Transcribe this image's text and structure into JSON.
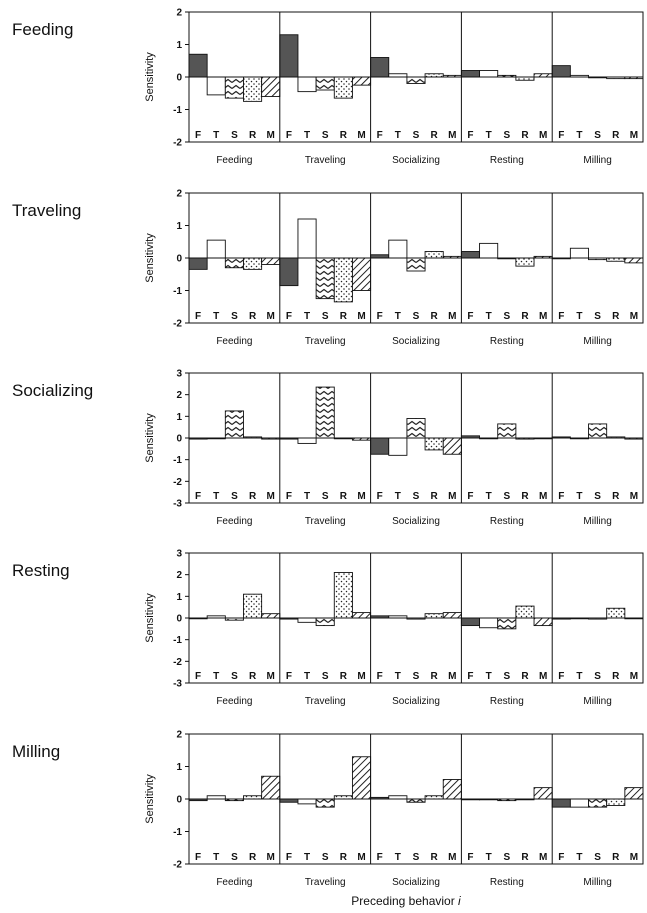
{
  "figure": {
    "x_axis_title": "Preceding behavior i",
    "x_axis_title_prefix": "Preceding behavior ",
    "x_axis_title_var": "i"
  },
  "chart_data": [
    {
      "type": "bar",
      "title": "Feeding",
      "ylabel": "Sensitivity",
      "ylim": [
        -2,
        2
      ],
      "yticks": [
        -2,
        -1,
        0,
        1,
        2
      ],
      "groups": [
        "Feeding",
        "Traveling",
        "Socializing",
        "Resting",
        "Milling"
      ],
      "categories": [
        "F",
        "T",
        "S",
        "R",
        "M"
      ],
      "values": [
        [
          0.7,
          -0.55,
          -0.65,
          -0.75,
          -0.6
        ],
        [
          1.3,
          -0.45,
          -0.4,
          -0.65,
          -0.25
        ],
        [
          0.6,
          0.1,
          -0.2,
          0.1,
          0.05
        ],
        [
          0.2,
          0.2,
          0.05,
          -0.1,
          0.1
        ],
        [
          0.35,
          0.05,
          0.0,
          -0.05,
          -0.05
        ]
      ]
    },
    {
      "type": "bar",
      "title": "Traveling",
      "ylabel": "Sensitivity",
      "ylim": [
        -2,
        2
      ],
      "yticks": [
        -2,
        -1,
        0,
        1,
        2
      ],
      "groups": [
        "Feeding",
        "Traveling",
        "Socializing",
        "Resting",
        "Milling"
      ],
      "categories": [
        "F",
        "T",
        "S",
        "R",
        "M"
      ],
      "values": [
        [
          -0.35,
          0.55,
          -0.3,
          -0.35,
          -0.2
        ],
        [
          -0.85,
          1.2,
          -1.25,
          -1.35,
          -1.0
        ],
        [
          0.1,
          0.55,
          -0.4,
          0.2,
          0.05
        ],
        [
          0.2,
          0.45,
          0.0,
          -0.25,
          0.05
        ],
        [
          0.0,
          0.3,
          -0.05,
          -0.1,
          -0.15
        ]
      ]
    },
    {
      "type": "bar",
      "title": "Socializing",
      "ylabel": "Sensitivity",
      "ylim": [
        -3,
        3
      ],
      "yticks": [
        -3,
        -2,
        -1,
        0,
        1,
        2,
        3
      ],
      "groups": [
        "Feeding",
        "Traveling",
        "Socializing",
        "Resting",
        "Milling"
      ],
      "categories": [
        "F",
        "T",
        "S",
        "R",
        "M"
      ],
      "values": [
        [
          -0.05,
          0.0,
          1.25,
          0.05,
          -0.05
        ],
        [
          -0.05,
          -0.25,
          2.35,
          0.0,
          -0.1
        ],
        [
          -0.75,
          -0.8,
          0.9,
          -0.55,
          -0.75
        ],
        [
          0.1,
          0.0,
          0.65,
          -0.05,
          0.0
        ],
        [
          0.05,
          0.0,
          0.65,
          0.05,
          -0.05
        ]
      ]
    },
    {
      "type": "bar",
      "title": "Resting",
      "ylabel": "Sensitivity",
      "ylim": [
        -3,
        3
      ],
      "yticks": [
        -3,
        -2,
        -1,
        0,
        1,
        2,
        3
      ],
      "groups": [
        "Feeding",
        "Traveling",
        "Socializing",
        "Resting",
        "Milling"
      ],
      "categories": [
        "F",
        "T",
        "S",
        "R",
        "M"
      ],
      "values": [
        [
          0.0,
          0.1,
          -0.1,
          1.1,
          0.2
        ],
        [
          -0.05,
          -0.2,
          -0.35,
          2.1,
          0.25
        ],
        [
          0.1,
          0.1,
          -0.05,
          0.2,
          0.25
        ],
        [
          -0.35,
          -0.45,
          -0.5,
          0.55,
          -0.35
        ],
        [
          -0.05,
          0.0,
          -0.05,
          0.45,
          0.0
        ]
      ]
    },
    {
      "type": "bar",
      "title": "Milling",
      "ylabel": "Sensitivity",
      "ylim": [
        -2,
        2
      ],
      "yticks": [
        -2,
        -1,
        0,
        1,
        2
      ],
      "groups": [
        "Feeding",
        "Traveling",
        "Socializing",
        "Resting",
        "Milling"
      ],
      "categories": [
        "F",
        "T",
        "S",
        "R",
        "M"
      ],
      "values": [
        [
          -0.05,
          0.1,
          -0.05,
          0.1,
          0.7
        ],
        [
          -0.1,
          -0.15,
          -0.25,
          0.1,
          1.3
        ],
        [
          0.05,
          0.1,
          -0.1,
          0.1,
          0.6
        ],
        [
          0.0,
          0.0,
          -0.05,
          0.0,
          0.35
        ],
        [
          -0.25,
          -0.25,
          -0.25,
          -0.2,
          0.35
        ]
      ]
    }
  ]
}
